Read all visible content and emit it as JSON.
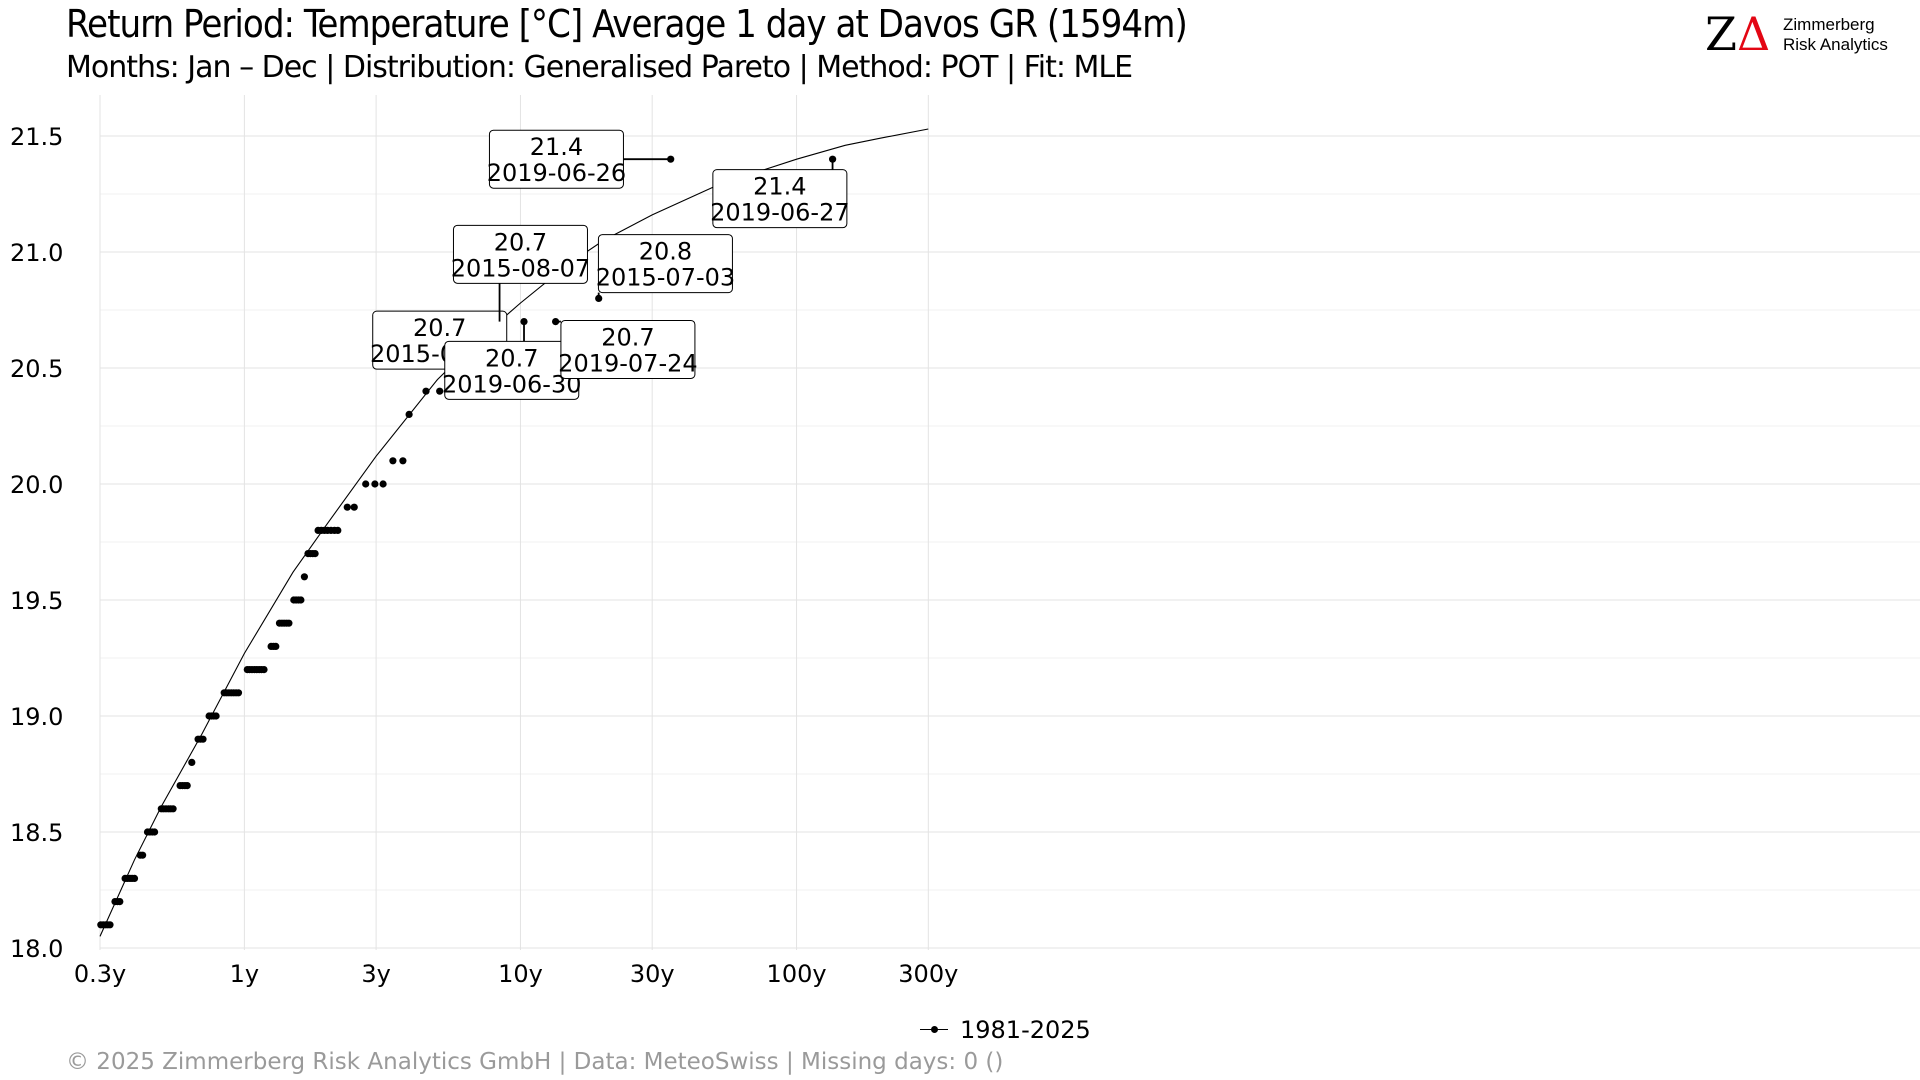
{
  "header": {
    "title": "Return Period: Temperature [°C] Average 1 day at Davos  GR (1594m)",
    "subtitle": "Months: Jan – Dec | Distribution: Generalised Pareto | Method: POT | Fit: MLE"
  },
  "logo": {
    "mark_z": "Z",
    "mark_delta": "Δ",
    "line1": "Zimmerberg",
    "line2": "Risk Analytics",
    "accent_color": "#e30613"
  },
  "footer": {
    "text": "©  2025 Zimmerberg Risk Analytics GmbH | Data: MeteoSwiss | Missing days: 0 ()"
  },
  "legend": {
    "label": "1981-2025",
    "placement": "bottom"
  },
  "chart_data": {
    "type": "scatter",
    "x_scale": "log",
    "xlim": [
      0.3,
      500
    ],
    "ylim": [
      18.0,
      21.6
    ],
    "grid": true,
    "x_ticks": [
      {
        "value": 0.3,
        "label": "0.3y"
      },
      {
        "value": 1,
        "label": "1y"
      },
      {
        "value": 3,
        "label": "3y"
      },
      {
        "value": 10,
        "label": "10y"
      },
      {
        "value": 30,
        "label": "30y"
      },
      {
        "value": 100,
        "label": "100y"
      },
      {
        "value": 300,
        "label": "300y"
      }
    ],
    "y_ticks": [
      {
        "value": 18.0,
        "label": "18.0"
      },
      {
        "value": 18.5,
        "label": "18.5"
      },
      {
        "value": 19.0,
        "label": "19.0"
      },
      {
        "value": 19.5,
        "label": "19.5"
      },
      {
        "value": 20.0,
        "label": "20.0"
      },
      {
        "value": 20.5,
        "label": "20.5"
      },
      {
        "value": 21.0,
        "label": "21.0"
      },
      {
        "value": 21.5,
        "label": "21.5"
      }
    ],
    "fit_curve": {
      "name": "Generalised Pareto fit",
      "x": [
        0.3,
        0.4,
        0.5,
        0.7,
        1,
        1.5,
        2,
        3,
        5,
        7,
        10,
        15,
        20,
        30,
        50,
        70,
        100,
        150,
        200,
        300
      ],
      "y": [
        18.05,
        18.38,
        18.61,
        18.92,
        19.27,
        19.62,
        19.83,
        20.12,
        20.45,
        20.62,
        20.78,
        20.95,
        21.05,
        21.16,
        21.28,
        21.34,
        21.4,
        21.46,
        21.49,
        21.53
      ]
    },
    "series": [
      {
        "name": "1981-2025",
        "color": "#000000",
        "points": [
          [
            0.302,
            18.1
          ],
          [
            0.308,
            18.1
          ],
          [
            0.314,
            18.1
          ],
          [
            0.32,
            18.1
          ],
          [
            0.326,
            18.1
          ],
          [
            0.34,
            18.2
          ],
          [
            0.347,
            18.2
          ],
          [
            0.354,
            18.2
          ],
          [
            0.37,
            18.3
          ],
          [
            0.377,
            18.3
          ],
          [
            0.385,
            18.3
          ],
          [
            0.392,
            18.3
          ],
          [
            0.4,
            18.3
          ],
          [
            0.42,
            18.4
          ],
          [
            0.428,
            18.4
          ],
          [
            0.446,
            18.5
          ],
          [
            0.455,
            18.5
          ],
          [
            0.464,
            18.5
          ],
          [
            0.473,
            18.5
          ],
          [
            0.5,
            18.6
          ],
          [
            0.51,
            18.6
          ],
          [
            0.52,
            18.6
          ],
          [
            0.531,
            18.6
          ],
          [
            0.541,
            18.6
          ],
          [
            0.552,
            18.6
          ],
          [
            0.585,
            18.7
          ],
          [
            0.597,
            18.7
          ],
          [
            0.609,
            18.7
          ],
          [
            0.621,
            18.7
          ],
          [
            0.645,
            18.8
          ],
          [
            0.68,
            18.9
          ],
          [
            0.694,
            18.9
          ],
          [
            0.708,
            18.9
          ],
          [
            0.745,
            19.0
          ],
          [
            0.76,
            19.0
          ],
          [
            0.775,
            19.0
          ],
          [
            0.79,
            19.0
          ],
          [
            0.845,
            19.1
          ],
          [
            0.862,
            19.1
          ],
          [
            0.879,
            19.1
          ],
          [
            0.897,
            19.1
          ],
          [
            0.915,
            19.1
          ],
          [
            0.933,
            19.1
          ],
          [
            0.952,
            19.1
          ],
          [
            1.025,
            19.2
          ],
          [
            1.045,
            19.2
          ],
          [
            1.066,
            19.2
          ],
          [
            1.088,
            19.2
          ],
          [
            1.109,
            19.2
          ],
          [
            1.132,
            19.2
          ],
          [
            1.154,
            19.2
          ],
          [
            1.178,
            19.2
          ],
          [
            1.25,
            19.3
          ],
          [
            1.275,
            19.3
          ],
          [
            1.3,
            19.3
          ],
          [
            1.34,
            19.4
          ],
          [
            1.367,
            19.4
          ],
          [
            1.394,
            19.4
          ],
          [
            1.422,
            19.4
          ],
          [
            1.45,
            19.4
          ],
          [
            1.51,
            19.5
          ],
          [
            1.54,
            19.5
          ],
          [
            1.571,
            19.5
          ],
          [
            1.603,
            19.5
          ],
          [
            1.65,
            19.6
          ],
          [
            1.7,
            19.7
          ],
          [
            1.734,
            19.7
          ],
          [
            1.769,
            19.7
          ],
          [
            1.804,
            19.7
          ],
          [
            1.85,
            19.8
          ],
          [
            1.9,
            19.8
          ],
          [
            1.95,
            19.8
          ],
          [
            2.0,
            19.8
          ],
          [
            2.06,
            19.8
          ],
          [
            2.12,
            19.8
          ],
          [
            2.18,
            19.8
          ],
          [
            2.36,
            19.9
          ],
          [
            2.5,
            19.9
          ],
          [
            2.75,
            20.0
          ],
          [
            2.97,
            20.0
          ],
          [
            3.18,
            20.0
          ],
          [
            3.45,
            20.1
          ],
          [
            3.75,
            20.1
          ],
          [
            3.95,
            20.3
          ],
          [
            4.55,
            20.4
          ],
          [
            5.1,
            20.4
          ],
          [
            5.7,
            20.4
          ],
          [
            6.35,
            20.5
          ],
          [
            7.1,
            20.7
          ],
          [
            8.4,
            20.7
          ],
          [
            10.3,
            20.7
          ],
          [
            13.4,
            20.7
          ],
          [
            19.2,
            20.8
          ],
          [
            35.0,
            21.4
          ],
          [
            135.0,
            21.4
          ]
        ]
      }
    ],
    "annotations": [
      {
        "value": "20.7",
        "date": "2015-07-05",
        "x": 7.1,
        "y": 20.7,
        "label_x": 5.1,
        "label_y": 20.62
      },
      {
        "value": "20.7",
        "date": "2015-08-07",
        "x": 8.4,
        "y": 20.7,
        "label_x": 10.0,
        "label_y": 20.99
      },
      {
        "value": "20.7",
        "date": "2019-06-30",
        "x": 10.3,
        "y": 20.7,
        "label_x": 9.3,
        "label_y": 20.49
      },
      {
        "value": "20.7",
        "date": "2019-07-24",
        "x": 13.4,
        "y": 20.7,
        "label_x": 24.5,
        "label_y": 20.58
      },
      {
        "value": "20.8",
        "date": "2015-07-03",
        "x": 19.2,
        "y": 20.8,
        "label_x": 33.5,
        "label_y": 20.95
      },
      {
        "value": "21.4",
        "date": "2019-06-26",
        "x": 35.0,
        "y": 21.4,
        "label_x": 13.5,
        "label_y": 21.4
      },
      {
        "value": "21.4",
        "date": "2019-06-27",
        "x": 135.0,
        "y": 21.4,
        "label_x": 87.0,
        "label_y": 21.23
      }
    ]
  }
}
